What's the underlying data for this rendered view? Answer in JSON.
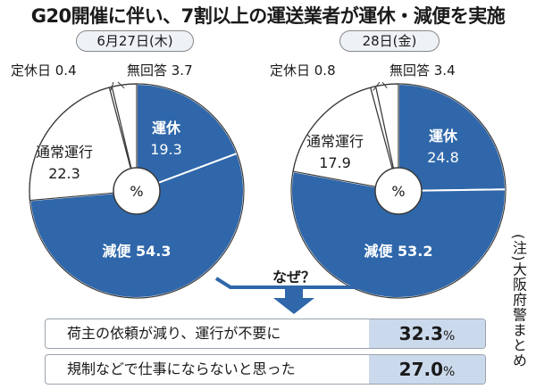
{
  "title": "G20開催に伴い、7割以上の運送業者が運休・減便を実施",
  "chart_data": [
    {
      "type": "pie",
      "date_label": "6月27日(木)",
      "center_label": "%",
      "slices": [
        {
          "label": "運休",
          "value": 19.3
        },
        {
          "label": "減便",
          "value": 54.3
        },
        {
          "label": "通常運行",
          "value": 22.3
        },
        {
          "label": "定休日",
          "value": 0.4
        },
        {
          "label": "無回答",
          "value": 3.7
        }
      ]
    },
    {
      "type": "pie",
      "date_label": "28日(金)",
      "center_label": "%",
      "slices": [
        {
          "label": "運休",
          "value": 24.8
        },
        {
          "label": "減便",
          "value": 53.2
        },
        {
          "label": "通常運行",
          "value": 17.9
        },
        {
          "label": "定休日",
          "value": 0.8
        },
        {
          "label": "無回答",
          "value": 3.4
        }
      ]
    }
  ],
  "question": "なぜ？",
  "reasons": [
    {
      "text": "荷主の依頼が減り、運行が不要に",
      "value": "32.3",
      "unit": "%"
    },
    {
      "text": "規制などで仕事にならないと思った",
      "value": "27.0",
      "unit": "%"
    }
  ],
  "note": "(注)大阪府警まとめ",
  "colors": {
    "filled": "#2f67aa",
    "unfilled": "#ffffff",
    "stroke": "#3a3a3a",
    "arrow": "#2f67aa",
    "value_box": "#cbd9ec"
  }
}
